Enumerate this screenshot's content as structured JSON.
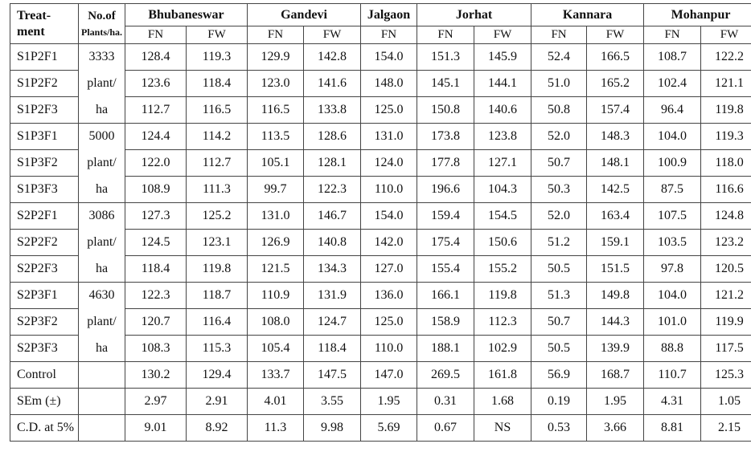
{
  "header": {
    "treatment_line1": "Treat-",
    "treatment_line2": "ment",
    "plants_line1": "No.of",
    "plants_line2": "Plants/ha.",
    "locations": [
      "Bhubaneswar",
      "Gandevi",
      "Jalgaon",
      "Jorhat",
      "Kannara",
      "Mohanpur"
    ],
    "sub_fn": "FN",
    "sub_fw": "FW"
  },
  "rows": [
    {
      "t": "S1P2F1",
      "p": "3333",
      "v": [
        "128.4",
        "119.3",
        "129.9",
        "142.8",
        "154.0",
        "151.3",
        "145.9",
        "52.4",
        "166.5",
        "108.7",
        "122.2"
      ]
    },
    {
      "t": "S1P2F2",
      "p": "plant/",
      "v": [
        "123.6",
        "118.4",
        "123.0",
        "141.6",
        "148.0",
        "145.1",
        "144.1",
        "51.0",
        "165.2",
        "102.4",
        "121.1"
      ]
    },
    {
      "t": "S1P2F3",
      "p": "ha",
      "v": [
        "112.7",
        "116.5",
        "116.5",
        "133.8",
        "125.0",
        "150.8",
        "140.6",
        "50.8",
        "157.4",
        "96.4",
        "119.8"
      ]
    },
    {
      "t": "S1P3F1",
      "p": "5000",
      "v": [
        "124.4",
        "114.2",
        "113.5",
        "128.6",
        "131.0",
        "173.8",
        "123.8",
        "52.0",
        "148.3",
        "104.0",
        "119.3"
      ]
    },
    {
      "t": "S1P3F2",
      "p": "plant/",
      "v": [
        "122.0",
        "112.7",
        "105.1",
        "128.1",
        "124.0",
        "177.8",
        "127.1",
        "50.7",
        "148.1",
        "100.9",
        "118.0"
      ]
    },
    {
      "t": "S1P3F3",
      "p": "ha",
      "v": [
        "108.9",
        "111.3",
        "99.7",
        "122.3",
        "110.0",
        "196.6",
        "104.3",
        "50.3",
        "142.5",
        "87.5",
        "116.6"
      ]
    },
    {
      "t": "S2P2F1",
      "p": "3086",
      "v": [
        "127.3",
        "125.2",
        "131.0",
        "146.7",
        "154.0",
        "159.4",
        "154.5",
        "52.0",
        "163.4",
        "107.5",
        "124.8"
      ]
    },
    {
      "t": "S2P2F2",
      "p": "plant/",
      "v": [
        "124.5",
        "123.1",
        "126.9",
        "140.8",
        "142.0",
        "175.4",
        "150.6",
        "51.2",
        "159.1",
        "103.5",
        "123.2"
      ]
    },
    {
      "t": "S2P2F3",
      "p": "ha",
      "v": [
        "118.4",
        "119.8",
        "121.5",
        "134.3",
        "127.0",
        "155.4",
        "155.2",
        "50.5",
        "151.5",
        "97.8",
        "120.5"
      ]
    },
    {
      "t": "S2P3F1",
      "p": "4630",
      "v": [
        "122.3",
        "118.7",
        "110.9",
        "131.9",
        "136.0",
        "166.1",
        "119.8",
        "51.3",
        "149.8",
        "104.0",
        "121.2"
      ]
    },
    {
      "t": "S2P3F2",
      "p": "plant/",
      "v": [
        "120.7",
        "116.4",
        "108.0",
        "124.7",
        "125.0",
        "158.9",
        "112.3",
        "50.7",
        "144.3",
        "101.0",
        "119.9"
      ]
    },
    {
      "t": "S2P3F3",
      "p": "ha",
      "v": [
        "108.3",
        "115.3",
        "105.4",
        "118.4",
        "110.0",
        "188.1",
        "102.9",
        "50.5",
        "139.9",
        "88.8",
        "117.5"
      ]
    },
    {
      "t": "Control",
      "p": "",
      "v": [
        "130.2",
        "129.4",
        "133.7",
        "147.5",
        "147.0",
        "269.5",
        "161.8",
        "56.9",
        "168.7",
        "110.7",
        "125.3"
      ]
    },
    {
      "t": "SEm (±)",
      "p": "",
      "v": [
        "2.97",
        "2.91",
        "4.01",
        "3.55",
        "1.95",
        "0.31",
        "1.68",
        "0.19",
        "1.95",
        "4.31",
        "1.05"
      ]
    },
    {
      "t": "C.D. at 5%",
      "p": "",
      "v": [
        "9.01",
        "8.92",
        "11.3",
        "9.98",
        "5.69",
        "0.67",
        "NS",
        "0.53",
        "3.66",
        "8.81",
        "2.15"
      ]
    }
  ]
}
